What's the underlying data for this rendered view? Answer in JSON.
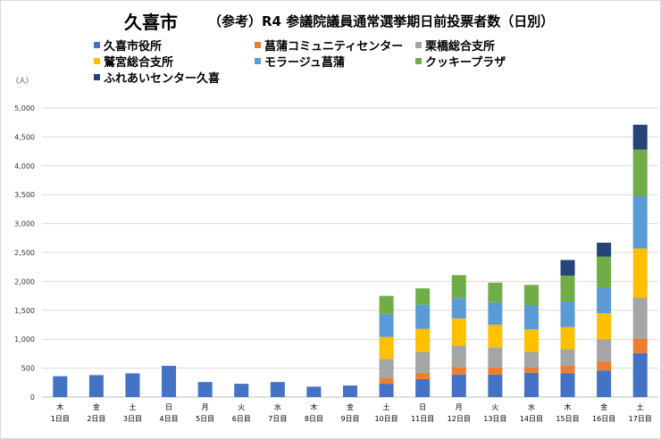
{
  "title": {
    "main": "久喜市",
    "sub": "（参考）R4 参議院議員通常選挙期日前投票者数（日別）"
  },
  "unit_label": "（人）",
  "colors": {
    "kuki_shiyakusho": "#4472C4",
    "shobu": "#ED7D31",
    "kurihashi": "#A5A5A5",
    "washinomiya": "#FFC000",
    "mora_ju": "#5B9BD5",
    "cookie_plaza": "#70AD47",
    "fureai": "#264478",
    "grid": "#d9d9d9",
    "axis": "#bfbfbf"
  },
  "legend": [
    {
      "label": "久喜市役所",
      "color_key": "kuki_shiyakusho"
    },
    {
      "label": "菖蒲コミュニティセンター",
      "color_key": "shobu"
    },
    {
      "label": "栗橋総合支所",
      "color_key": "kurihashi"
    },
    {
      "label": "鷲宮総合支所",
      "color_key": "washinomiya"
    },
    {
      "label": "モラージュ菖蒲",
      "color_key": "mora_ju"
    },
    {
      "label": "クッキープラザ",
      "color_key": "cookie_plaza"
    },
    {
      "label": "ふれあいセンター久喜",
      "color_key": "fureai"
    }
  ],
  "chart_data": {
    "type": "bar",
    "stacked": true,
    "title": "久喜市　（参考）R4 参議院議員通常選挙期日前投票者数（日別）",
    "ylabel": "（人）",
    "ylim": [
      0,
      5000
    ],
    "yticks": [
      "0",
      "500",
      "1,000",
      "1,500",
      "2,000",
      "2,500",
      "3,000",
      "3,500",
      "4,000",
      "4,500",
      "5,000"
    ],
    "ytick_values": [
      0,
      500,
      1000,
      1500,
      2000,
      2500,
      3000,
      3500,
      4000,
      4500,
      5000
    ],
    "grid": true,
    "legend_position": "top",
    "categories": [
      {
        "weekday": "木",
        "day": "1日目"
      },
      {
        "weekday": "金",
        "day": "2日目"
      },
      {
        "weekday": "土",
        "day": "3日目"
      },
      {
        "weekday": "日",
        "day": "4日目"
      },
      {
        "weekday": "月",
        "day": "5日目"
      },
      {
        "weekday": "火",
        "day": "6日目"
      },
      {
        "weekday": "水",
        "day": "7日目"
      },
      {
        "weekday": "木",
        "day": "8日目"
      },
      {
        "weekday": "金",
        "day": "9日目"
      },
      {
        "weekday": "土",
        "day": "10日目"
      },
      {
        "weekday": "日",
        "day": "11日目"
      },
      {
        "weekday": "月",
        "day": "12日目"
      },
      {
        "weekday": "火",
        "day": "13日目"
      },
      {
        "weekday": "水",
        "day": "14日目"
      },
      {
        "weekday": "木",
        "day": "15日目"
      },
      {
        "weekday": "金",
        "day": "16日目"
      },
      {
        "weekday": "土",
        "day": "17日目"
      }
    ],
    "series": [
      {
        "name": "久喜市役所",
        "color_key": "kuki_shiyakusho",
        "values": [
          360,
          380,
          410,
          540,
          260,
          230,
          260,
          180,
          200,
          230,
          310,
          390,
          390,
          420,
          410,
          460,
          760
        ]
      },
      {
        "name": "菖蒲コミュニティセンター",
        "color_key": "shobu",
        "values": [
          0,
          0,
          0,
          0,
          0,
          0,
          0,
          0,
          0,
          100,
          110,
          130,
          120,
          90,
          130,
          160,
          250
        ]
      },
      {
        "name": "栗橋総合支所",
        "color_key": "kurihashi",
        "values": [
          0,
          0,
          0,
          0,
          0,
          0,
          0,
          0,
          0,
          330,
          360,
          370,
          350,
          270,
          290,
          380,
          710
        ]
      },
      {
        "name": "鷲宮総合支所",
        "color_key": "washinomiya",
        "values": [
          0,
          0,
          0,
          0,
          0,
          0,
          0,
          0,
          0,
          380,
          400,
          470,
          390,
          390,
          380,
          450,
          850
        ]
      },
      {
        "name": "モラージュ菖蒲",
        "color_key": "mora_ju",
        "values": [
          0,
          0,
          0,
          0,
          0,
          0,
          0,
          0,
          0,
          400,
          420,
          350,
          390,
          420,
          440,
          440,
          910
        ]
      },
      {
        "name": "クッキープラザ",
        "color_key": "cookie_plaza",
        "values": [
          0,
          0,
          0,
          0,
          0,
          0,
          0,
          0,
          0,
          310,
          280,
          400,
          340,
          350,
          450,
          540,
          800
        ]
      },
      {
        "name": "ふれあいセンター久喜",
        "color_key": "fureai",
        "values": [
          0,
          0,
          0,
          0,
          0,
          0,
          0,
          0,
          0,
          0,
          0,
          0,
          0,
          0,
          270,
          240,
          430
        ]
      }
    ]
  }
}
